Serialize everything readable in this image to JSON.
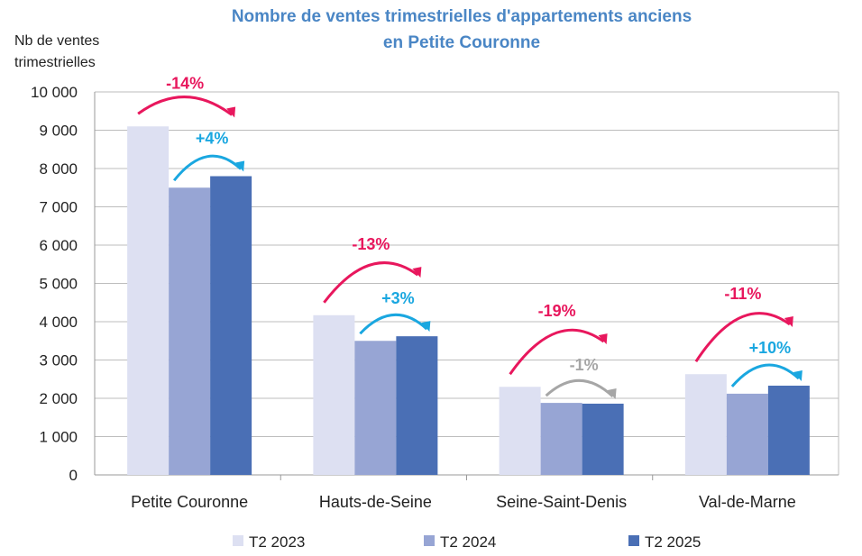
{
  "chart_data": {
    "type": "bar",
    "title": [
      "Nombre de ventes trimestrielles d'appartements anciens",
      "en Petite Couronne"
    ],
    "ylabel": [
      "Nb de ventes",
      "trimestrielles"
    ],
    "xlabel": "",
    "ylim": [
      0,
      10000
    ],
    "yticks": [
      "0",
      "1 000",
      "2 000",
      "3 000",
      "4 000",
      "5 000",
      "6 000",
      "7 000",
      "8 000",
      "9 000",
      "10 000"
    ],
    "grid": true,
    "legend_position": "bottom",
    "categories": [
      "Petite Couronne",
      "Hauts-de-Seine",
      "Seine-Saint-Denis",
      "Val-de-Marne"
    ],
    "series": [
      {
        "name": "T2 2023",
        "color": "#dde0f2",
        "values": [
          9100,
          4170,
          2300,
          2630
        ]
      },
      {
        "name": "T2 2024",
        "color": "#97a5d4",
        "values": [
          7500,
          3500,
          1880,
          2120
        ]
      },
      {
        "name": "T2 2025",
        "color": "#4a6fb5",
        "values": [
          7800,
          3620,
          1860,
          2330
        ]
      }
    ],
    "annotations": {
      "vs_2023": {
        "labels": [
          "-14%",
          "-13%",
          "-19%",
          "-11%"
        ],
        "colors": [
          "#e8175d",
          "#e8175d",
          "#e8175d",
          "#e8175d"
        ]
      },
      "vs_2024": {
        "labels": [
          "+4%",
          "+3%",
          "-1%",
          "+10%"
        ],
        "colors": [
          "#1aa7e0",
          "#1aa7e0",
          "#a6a6a6",
          "#1aa7e0"
        ]
      }
    },
    "title_color": "#4a86c5"
  }
}
